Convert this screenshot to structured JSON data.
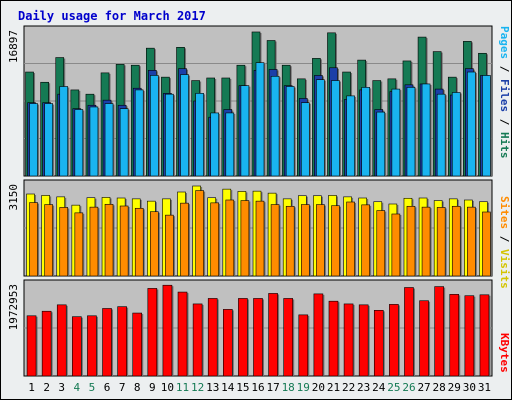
{
  "title": "Daily usage for March 2017",
  "chart_data": [
    {
      "type": "bar",
      "panel": "pages-files-hits",
      "max_label": "16897",
      "ylim": [
        0,
        16897
      ],
      "categories": [
        "1",
        "2",
        "3",
        "4",
        "5",
        "6",
        "7",
        "8",
        "9",
        "10",
        "11",
        "12",
        "13",
        "14",
        "15",
        "16",
        "17",
        "18",
        "19",
        "20",
        "21",
        "22",
        "23",
        "24",
        "25",
        "26",
        "27",
        "28",
        "29",
        "30",
        "31"
      ],
      "series": [
        {
          "name": "Hits",
          "color": "#157a54",
          "values": [
            12200,
            11000,
            13900,
            10100,
            9600,
            12100,
            13100,
            13000,
            15000,
            11600,
            15100,
            11200,
            11500,
            11500,
            13000,
            16900,
            15900,
            13000,
            11400,
            13800,
            16800,
            12200,
            13600,
            11200,
            11400,
            13500,
            16300,
            14600,
            11600,
            15800,
            14400
          ]
        },
        {
          "name": "Files",
          "color": "#1b3fa8",
          "values": [
            8600,
            8600,
            9600,
            7900,
            8300,
            8900,
            8300,
            10300,
            12400,
            9700,
            12600,
            8800,
            6900,
            7800,
            10600,
            12400,
            12500,
            10600,
            9100,
            11800,
            12700,
            9000,
            10100,
            7800,
            9900,
            10700,
            10800,
            10200,
            9500,
            12600,
            11800
          ]
        },
        {
          "name": "Pages",
          "color": "#19b4f0",
          "values": [
            8500,
            8500,
            10500,
            7800,
            8100,
            8500,
            7900,
            10100,
            11800,
            9600,
            11900,
            9700,
            7400,
            7400,
            10600,
            13300,
            11700,
            10500,
            8600,
            11300,
            11200,
            9400,
            10400,
            7500,
            10200,
            10400,
            10800,
            9600,
            9800,
            12200,
            11800
          ]
        }
      ]
    },
    {
      "type": "bar",
      "panel": "visits-sites",
      "max_label": "3150",
      "ylim": [
        0,
        3150
      ],
      "categories": [
        "1",
        "2",
        "3",
        "4",
        "5",
        "6",
        "7",
        "8",
        "9",
        "10",
        "11",
        "12",
        "13",
        "14",
        "15",
        "16",
        "17",
        "18",
        "19",
        "20",
        "21",
        "22",
        "23",
        "24",
        "25",
        "26",
        "27",
        "28",
        "29",
        "30",
        "31"
      ],
      "series": [
        {
          "name": "Visits",
          "color": "#ffff00",
          "values": [
            2870,
            2820,
            2770,
            2480,
            2740,
            2750,
            2730,
            2700,
            2620,
            2700,
            2940,
            3150,
            2740,
            3040,
            2960,
            2970,
            2900,
            2700,
            2810,
            2810,
            2820,
            2770,
            2730,
            2600,
            2520,
            2720,
            2730,
            2640,
            2700,
            2660,
            2600
          ]
        },
        {
          "name": "Sites",
          "color": "#ff8c00",
          "values": [
            2570,
            2500,
            2400,
            2210,
            2410,
            2510,
            2450,
            2370,
            2250,
            2130,
            2550,
            2990,
            2560,
            2660,
            2640,
            2620,
            2500,
            2440,
            2500,
            2500,
            2460,
            2590,
            2490,
            2290,
            2170,
            2440,
            2410,
            2400,
            2440,
            2410,
            2240
          ]
        }
      ]
    },
    {
      "type": "bar",
      "panel": "kbytes",
      "max_label": "1972953",
      "ylim": [
        0,
        1972953
      ],
      "categories": [
        "1",
        "2",
        "3",
        "4",
        "5",
        "6",
        "7",
        "8",
        "9",
        "10",
        "11",
        "12",
        "13",
        "14",
        "15",
        "16",
        "17",
        "18",
        "19",
        "20",
        "21",
        "22",
        "23",
        "24",
        "25",
        "26",
        "27",
        "28",
        "29",
        "30",
        "31"
      ],
      "series": [
        {
          "name": "KBytes",
          "color": "#ff0000",
          "values": [
            1320000,
            1420000,
            1560000,
            1300000,
            1320000,
            1480000,
            1520000,
            1380000,
            1920000,
            1990000,
            1840000,
            1580000,
            1700000,
            1460000,
            1700000,
            1700000,
            1810000,
            1700000,
            1340000,
            1800000,
            1640000,
            1580000,
            1560000,
            1440000,
            1570000,
            1940000,
            1650000,
            1960000,
            1790000,
            1760000,
            1780000
          ]
        }
      ]
    }
  ],
  "side_labels": {
    "hits": "Hits",
    "files": "Files",
    "pages": "Pages",
    "visits": "Visits",
    "sites": "Sites",
    "kbytes": "KBytes",
    "sep": " / "
  },
  "x_label_colors": {
    "weekday": "#000000",
    "weekend": "#157a54"
  },
  "weekend_days": [
    "4",
    "5",
    "11",
    "12",
    "18",
    "19",
    "25",
    "26"
  ],
  "colors": {
    "plot_bg": "#c0c0c0",
    "frame_bg": "#eceff0",
    "grid": "#8a8a8a"
  }
}
